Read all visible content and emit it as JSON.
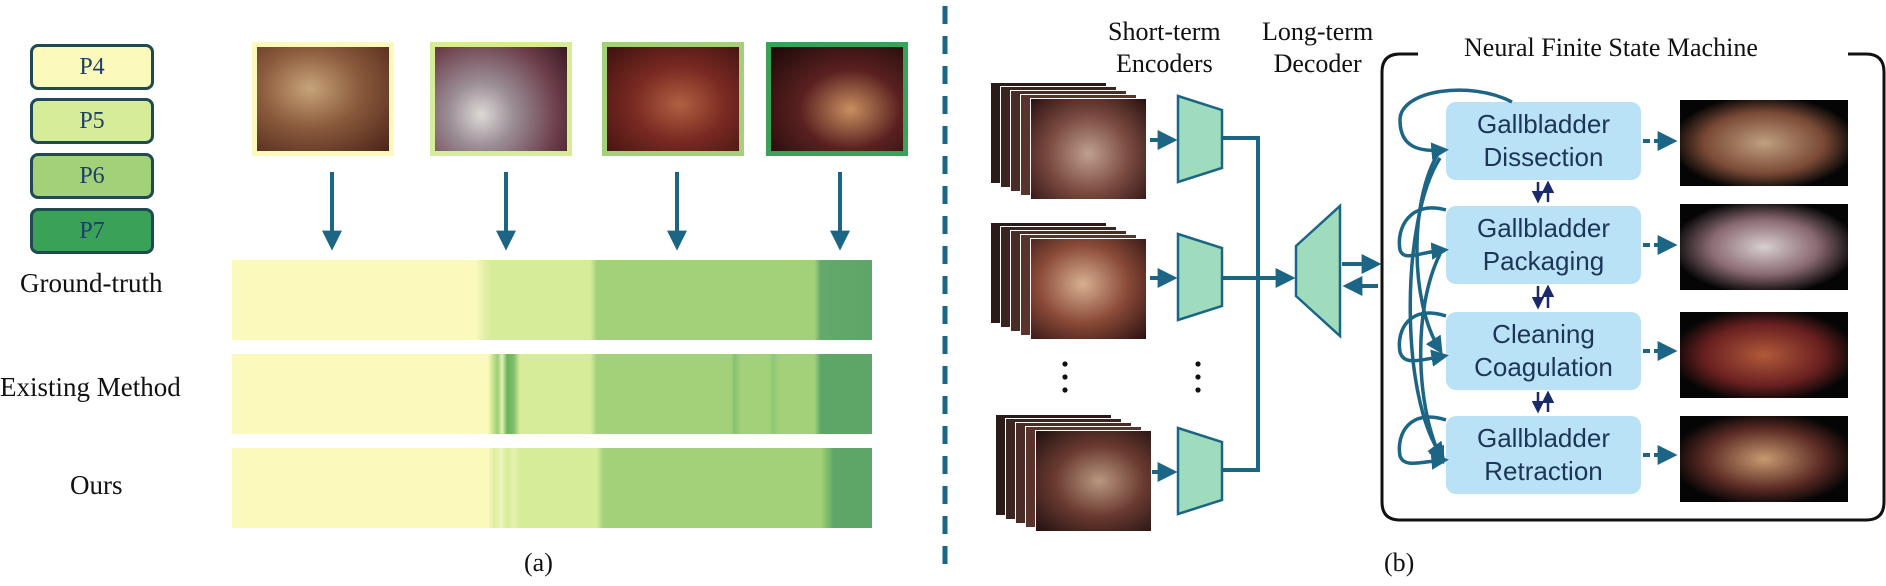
{
  "panel_a": {
    "legend": [
      {
        "label": "P4",
        "color": "#fbfabc"
      },
      {
        "label": "P5",
        "color": "#d6ec99"
      },
      {
        "label": "P6",
        "color": "#a2d17a"
      },
      {
        "label": "P7",
        "color": "#3aa159"
      }
    ],
    "rows": [
      {
        "label": "Ground-truth"
      },
      {
        "label": "Existing Method"
      },
      {
        "label": "Ours"
      }
    ],
    "caption": "(a)"
  },
  "panel_b": {
    "short_term_label": [
      "Short-term",
      "Encoders"
    ],
    "long_term_label": [
      "Long-term",
      "Decoder"
    ],
    "fsm_title": "Neural Finite State Machine",
    "states": [
      {
        "line1": "Gallbladder",
        "line2": "Dissection"
      },
      {
        "line1": "Gallbladder",
        "line2": "Packaging"
      },
      {
        "line1": "Cleaning",
        "line2": "Coagulation"
      },
      {
        "line1": "Gallbladder",
        "line2": "Retraction"
      }
    ],
    "caption": "(b)"
  },
  "colors": {
    "arrow": "#1d6585",
    "encoder": "#9fdcbd",
    "state_box": "#b9e2f6",
    "state_text": "#1d3557",
    "divider": "#1d6585"
  }
}
